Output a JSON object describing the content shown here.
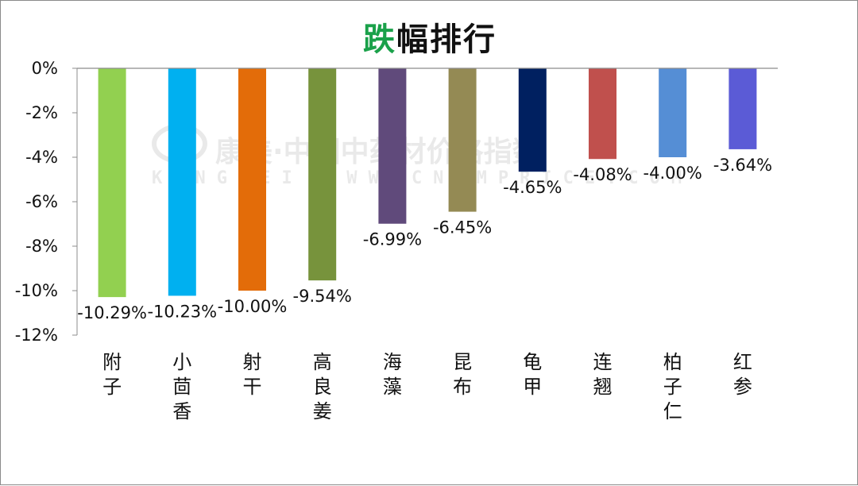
{
  "title": {
    "accent": "跌",
    "rest": "幅排行"
  },
  "watermark": {
    "main": "康美·中国中药材价格指数",
    "sub": "KANGMEI WWW.CNKMPRICE.COM"
  },
  "chart_data": {
    "type": "bar",
    "title": "跌幅排行",
    "categories": [
      "附子",
      "小茴香",
      "射干",
      "高良姜",
      "海藻",
      "昆布",
      "龟甲",
      "连翘",
      "柏子仁",
      "红参"
    ],
    "series": [
      {
        "values": [
          -10.29,
          -10.23,
          -10.0,
          -9.54,
          -6.99,
          -6.45,
          -4.65,
          -4.08,
          -4.0,
          -3.64
        ],
        "labels": [
          "-10.29%",
          "-10.23%",
          "-10.00%",
          "-9.54%",
          "-6.99%",
          "-6.45%",
          "-4.65%",
          "-4.08%",
          "-4.00%",
          "-3.64%"
        ]
      }
    ],
    "colors": [
      "#92d050",
      "#00b0f0",
      "#e36c09",
      "#77933c",
      "#604a7b",
      "#948a54",
      "#002060",
      "#c0504d",
      "#558ed5",
      "#5b5bd6"
    ],
    "ylim": [
      -12,
      0
    ],
    "yticks": [
      0,
      -2,
      -4,
      -6,
      -8,
      -10,
      -12
    ],
    "ytick_labels": [
      "0%",
      "-2%",
      "-4%",
      "-6%",
      "-8%",
      "-10%",
      "-12%"
    ],
    "grid": false,
    "legend": "none"
  }
}
